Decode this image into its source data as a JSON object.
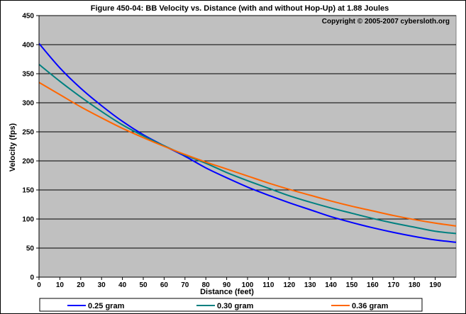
{
  "chart_data": {
    "type": "line",
    "title": "Figure 450-04:  BB Velocity vs. Distance (with and without Hop-Up) at 1.88 Joules",
    "copyright": "Copyright © 2005-2007 cybersloth.org",
    "xlabel": "Distance (feet)",
    "ylabel": "Velocity (fps)",
    "xlim": [
      0,
      200
    ],
    "ylim": [
      0,
      450
    ],
    "xticks": [
      0,
      10,
      20,
      30,
      40,
      50,
      60,
      70,
      80,
      90,
      100,
      110,
      120,
      130,
      140,
      150,
      160,
      170,
      180,
      190
    ],
    "yticks": [
      0,
      50,
      100,
      150,
      200,
      250,
      300,
      350,
      400,
      450
    ],
    "grid": "horizontal",
    "background": "#C0C0C0",
    "legend_position": "bottom",
    "x": [
      0,
      10,
      20,
      30,
      40,
      50,
      60,
      70,
      80,
      90,
      100,
      110,
      120,
      130,
      140,
      150,
      160,
      170,
      180,
      190,
      200
    ],
    "series": [
      {
        "name": "0.25 gram",
        "color": "#0000FF",
        "values": [
          402,
          360,
          325,
          295,
          268,
          245,
          226,
          208,
          188,
          171,
          155,
          141,
          128,
          116,
          104,
          94,
          85,
          77,
          70,
          64,
          60
        ]
      },
      {
        "name": "0.30 gram",
        "color": "#008080",
        "values": [
          366,
          337,
          310,
          285,
          262,
          243,
          226,
          210,
          196,
          180,
          166,
          153,
          140,
          129,
          119,
          110,
          101,
          93,
          86,
          79,
          75
        ]
      },
      {
        "name": "0.36 gram",
        "color": "#FF6600",
        "values": [
          335,
          314,
          293,
          274,
          256,
          240,
          225,
          211,
          198,
          186,
          174,
          162,
          151,
          141,
          131,
          122,
          114,
          106,
          99,
          93,
          88
        ]
      }
    ]
  }
}
